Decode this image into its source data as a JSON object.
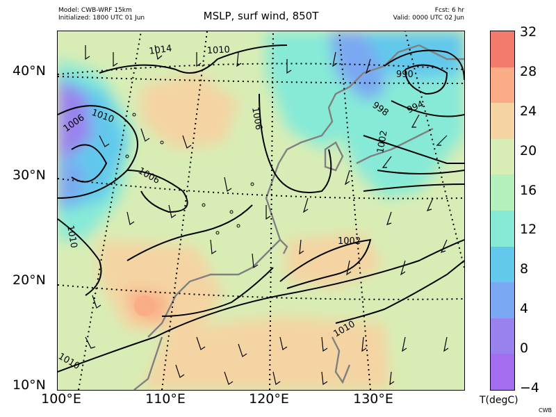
{
  "header": {
    "model": "Model: CWB-WRF 15km",
    "initialized": "Initialized: 1800 UTC 01 Jun",
    "title": "MSLP, surf wind, 850T",
    "forecast": "Fcst: 6 hr",
    "valid": "Valid: 0000 UTC 02 Jun"
  },
  "map": {
    "lat_labels": [
      "40°N",
      "30°N",
      "20°N",
      "10°N"
    ],
    "lon_labels": [
      "100°E",
      "110°E",
      "120°E",
      "130°E"
    ],
    "isobar_labels": [
      "1014",
      "1010",
      "1006",
      "1010",
      "1006",
      "1006",
      "1006",
      "1010",
      "1002",
      "1010",
      "1010",
      "990",
      "998",
      "994",
      "1002"
    ]
  },
  "colorbar": {
    "label": "T(degC)",
    "ticks": [
      "32",
      "28",
      "24",
      "20",
      "16",
      "12",
      "8",
      "4",
      "0",
      "−4"
    ],
    "colors": [
      "#f37b6b",
      "#f9ac86",
      "#f4d4a2",
      "#d8edb5",
      "#b3f0bb",
      "#86ead7",
      "#62c8ec",
      "#7aa8f2",
      "#9a82ee",
      "#a46df0"
    ]
  },
  "credit": "CWB"
}
